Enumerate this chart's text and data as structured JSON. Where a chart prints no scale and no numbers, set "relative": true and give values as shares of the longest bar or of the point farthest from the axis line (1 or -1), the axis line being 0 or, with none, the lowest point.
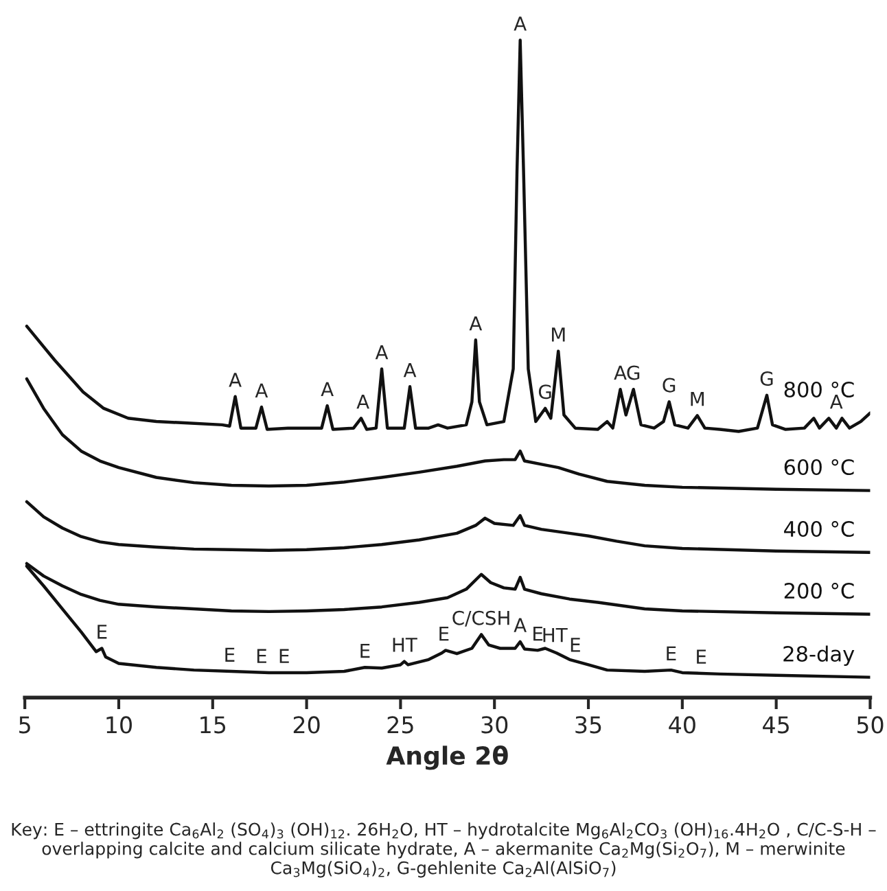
{
  "chart_data": {
    "type": "line",
    "relative": true,
    "xlabel": "Angle 2θ",
    "xlim": [
      5,
      50
    ],
    "xticks": [
      5,
      10,
      15,
      20,
      25,
      30,
      35,
      40,
      45,
      50
    ],
    "legend": false,
    "grid": false,
    "tick_labels": "x",
    "series": [
      {
        "name": "800 °C",
        "color": "#111111",
        "x": [
          5.1,
          6.6,
          8.1,
          9.2,
          10.5,
          12,
          13.5,
          15.5,
          15.9,
          16.2,
          16.5,
          17.3,
          17.6,
          17.9,
          19,
          20,
          20.8,
          21.1,
          21.4,
          22.5,
          22.9,
          23.2,
          23.7,
          24.0,
          24.3,
          25.2,
          25.5,
          25.8,
          26.5,
          27,
          27.5,
          28.5,
          28.8,
          29.0,
          29.2,
          29.6,
          30.5,
          31.0,
          31.2,
          31.37,
          31.55,
          31.8,
          32.2,
          32.7,
          33.0,
          33.4,
          33.7,
          34.3,
          35.5,
          36,
          36.3,
          36.7,
          37.0,
          37.4,
          37.8,
          38.5,
          39.0,
          39.3,
          39.6,
          40.3,
          40.8,
          41.2,
          42,
          43,
          44,
          44.5,
          44.8,
          45.5,
          46.5,
          47.0,
          47.3,
          47.8,
          48.2,
          48.5,
          48.9,
          49.5,
          50
        ],
        "values": [
          0.565,
          0.513,
          0.465,
          0.44,
          0.425,
          0.42,
          0.418,
          0.415,
          0.413,
          0.458,
          0.41,
          0.41,
          0.442,
          0.408,
          0.41,
          0.41,
          0.41,
          0.444,
          0.408,
          0.41,
          0.425,
          0.408,
          0.41,
          0.5,
          0.41,
          0.41,
          0.473,
          0.41,
          0.41,
          0.415,
          0.41,
          0.415,
          0.45,
          0.544,
          0.45,
          0.415,
          0.42,
          0.5,
          0.8,
          1.0,
          0.8,
          0.5,
          0.42,
          0.44,
          0.425,
          0.527,
          0.43,
          0.41,
          0.408,
          0.42,
          0.41,
          0.469,
          0.43,
          0.469,
          0.415,
          0.41,
          0.42,
          0.45,
          0.415,
          0.41,
          0.429,
          0.41,
          0.408,
          0.405,
          0.41,
          0.46,
          0.415,
          0.408,
          0.41,
          0.425,
          0.41,
          0.425,
          0.41,
          0.425,
          0.41,
          0.42,
          0.433
        ]
      },
      {
        "name": "600 °C",
        "color": "#111111",
        "x": [
          5.1,
          6,
          7,
          8,
          9,
          10,
          12,
          14,
          16,
          18,
          20,
          22,
          24,
          26,
          28,
          29.5,
          30.5,
          31.1,
          31.37,
          31.6,
          32.5,
          33.4,
          34.5,
          36,
          38,
          40,
          45,
          50
        ],
        "values": [
          0.485,
          0.44,
          0.4,
          0.375,
          0.36,
          0.35,
          0.335,
          0.327,
          0.323,
          0.322,
          0.323,
          0.328,
          0.335,
          0.343,
          0.352,
          0.36,
          0.362,
          0.362,
          0.375,
          0.36,
          0.355,
          0.35,
          0.34,
          0.329,
          0.323,
          0.32,
          0.317,
          0.315
        ]
      },
      {
        "name": "400 °C",
        "color": "#111111",
        "x": [
          5.1,
          6,
          7,
          8,
          9,
          10,
          12,
          14,
          16,
          18,
          20,
          22,
          24,
          26,
          28,
          29.0,
          29.5,
          30,
          31.0,
          31.37,
          31.6,
          32.5,
          34,
          35,
          36.5,
          38,
          40,
          45,
          50
        ],
        "values": [
          0.298,
          0.275,
          0.258,
          0.245,
          0.237,
          0.233,
          0.229,
          0.226,
          0.225,
          0.224,
          0.225,
          0.228,
          0.233,
          0.24,
          0.25,
          0.262,
          0.273,
          0.265,
          0.262,
          0.277,
          0.262,
          0.256,
          0.25,
          0.246,
          0.238,
          0.231,
          0.227,
          0.223,
          0.221
        ]
      },
      {
        "name": "200 °C",
        "color": "#111111",
        "x": [
          5.1,
          6,
          7,
          8,
          9,
          10,
          12,
          14,
          16,
          18,
          20,
          22,
          24,
          26,
          27.5,
          28.5,
          29.3,
          29.8,
          30.5,
          31.1,
          31.37,
          31.6,
          32.5,
          34,
          35.5,
          38,
          40,
          45,
          50
        ],
        "values": [
          0.204,
          0.185,
          0.17,
          0.157,
          0.148,
          0.142,
          0.138,
          0.135,
          0.132,
          0.131,
          0.132,
          0.134,
          0.138,
          0.145,
          0.152,
          0.165,
          0.1875,
          0.175,
          0.167,
          0.165,
          0.183,
          0.165,
          0.158,
          0.15,
          0.145,
          0.135,
          0.132,
          0.129,
          0.127
        ]
      },
      {
        "name": "28-day",
        "color": "#111111",
        "x": [
          5.1,
          6,
          7,
          8,
          8.8,
          9.1,
          9.3,
          10,
          12,
          14,
          16,
          18,
          20,
          22,
          23.1,
          24,
          25,
          25.2,
          25.4,
          26.5,
          27.2,
          27.4,
          28,
          28.8,
          29.3,
          29.7,
          30.3,
          31.1,
          31.37,
          31.6,
          32.3,
          32.7,
          33.3,
          34,
          35,
          36,
          38,
          39.4,
          40,
          42,
          45,
          50
        ],
        "values": [
          0.2,
          0.17,
          0.135,
          0.1,
          0.07,
          0.075,
          0.062,
          0.052,
          0.046,
          0.042,
          0.04,
          0.038,
          0.038,
          0.04,
          0.046,
          0.045,
          0.05,
          0.055,
          0.05,
          0.058,
          0.068,
          0.072,
          0.067,
          0.075,
          0.096,
          0.08,
          0.075,
          0.075,
          0.085,
          0.074,
          0.072,
          0.075,
          0.068,
          0.058,
          0.05,
          0.042,
          0.04,
          0.042,
          0.038,
          0.036,
          0.034,
          0.031
        ]
      }
    ],
    "annotations": [
      {
        "text": "A",
        "x": 16.2,
        "y": 0.458
      },
      {
        "text": "A",
        "x": 17.6,
        "y": 0.442
      },
      {
        "text": "A",
        "x": 21.1,
        "y": 0.444
      },
      {
        "text": "A",
        "x": 23.0,
        "y": 0.425
      },
      {
        "text": "A",
        "x": 24.0,
        "y": 0.5
      },
      {
        "text": "A",
        "x": 25.5,
        "y": 0.473
      },
      {
        "text": "A",
        "x": 29.0,
        "y": 0.544
      },
      {
        "text": "A",
        "x": 31.37,
        "y": 1.0
      },
      {
        "text": "G",
        "x": 32.7,
        "y": 0.44
      },
      {
        "text": "M",
        "x": 33.4,
        "y": 0.527
      },
      {
        "text": "A",
        "x": 36.7,
        "y": 0.469
      },
      {
        "text": "G",
        "x": 37.4,
        "y": 0.469
      },
      {
        "text": "G",
        "x": 39.3,
        "y": 0.45
      },
      {
        "text": "M",
        "x": 40.8,
        "y": 0.429
      },
      {
        "text": "G",
        "x": 44.5,
        "y": 0.46
      },
      {
        "text": "A",
        "x": 48.2,
        "y": 0.425
      },
      {
        "text": "E",
        "x": 9.1,
        "y": 0.075
      },
      {
        "text": "E",
        "x": 15.9,
        "y": 0.04
      },
      {
        "text": "E",
        "x": 17.6,
        "y": 0.038
      },
      {
        "text": "E",
        "x": 18.8,
        "y": 0.038
      },
      {
        "text": "E",
        "x": 23.1,
        "y": 0.046
      },
      {
        "text": "HT",
        "x": 25.2,
        "y": 0.055
      },
      {
        "text": "E",
        "x": 27.3,
        "y": 0.072
      },
      {
        "text": "C/CSH",
        "x": 29.3,
        "y": 0.096
      },
      {
        "text": "A",
        "x": 31.37,
        "y": 0.085
      },
      {
        "text": "E",
        "x": 32.3,
        "y": 0.072
      },
      {
        "text": "HT",
        "x": 33.2,
        "y": 0.07
      },
      {
        "text": "E",
        "x": 34.3,
        "y": 0.055
      },
      {
        "text": "E",
        "x": 39.4,
        "y": 0.042
      },
      {
        "text": "E",
        "x": 41.0,
        "y": 0.037
      },
      "Key: E – ettringite Ca$_{6}$Al$_{2}$ (SO$_{4}$)$_{3}$ (OH)$_{12}$. 26H$_{2}$O, HT – hydrotalcite Mg$_{6}$Al$_{2}$CO$_{3}$ (OH)$_{16}$.4H$_{2}$O , C/C-S-H – overlapping calcite and calcium silicate hydrate, A – akermanite Ca$_{2}$Mg(Si$_{2}$O$_{7}$), M – merwinite Ca$_{3}$Mg(SiO$_{4}$)$_{2}$, G-gehlenite Ca$_{2}$Al(AlSiO$_{7}$)"
    ]
  }
}
